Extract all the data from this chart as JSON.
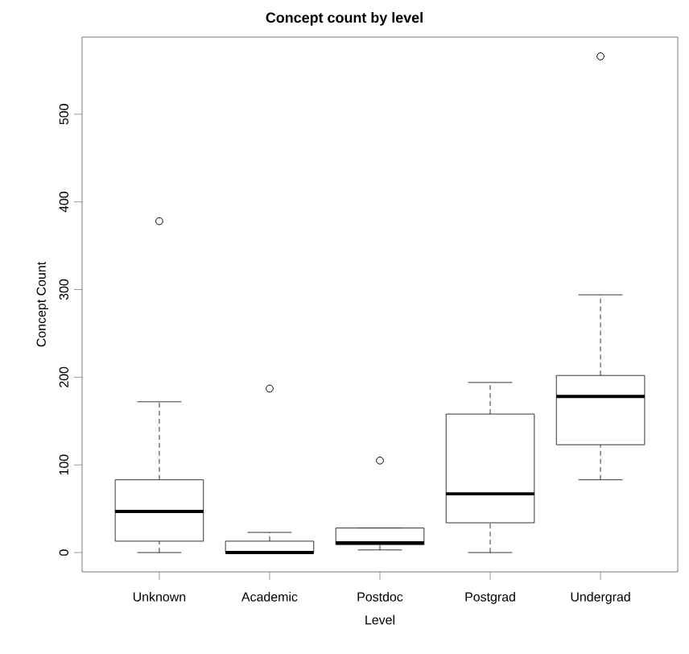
{
  "chart_data": {
    "type": "box",
    "title": "Concept count by level",
    "xlabel": "Level",
    "ylabel": "Concept Count",
    "categories": [
      "Unknown",
      "Academic",
      "Postdoc",
      "Postgrad",
      "Undergrad"
    ],
    "boxes": [
      {
        "low": 0,
        "q1": 13,
        "median": 47,
        "q3": 83,
        "high": 172,
        "outliers": [
          378
        ]
      },
      {
        "low": 0,
        "q1": 0,
        "median": 0,
        "q3": 13,
        "high": 23,
        "outliers": [
          187
        ]
      },
      {
        "low": 3,
        "q1": 9,
        "median": 11,
        "q3": 28,
        "high": 28,
        "outliers": [
          105
        ]
      },
      {
        "low": 0,
        "q1": 34,
        "median": 67,
        "q3": 158,
        "high": 194
      },
      {
        "low": 83,
        "q1": 123,
        "median": 178,
        "q3": 202,
        "high": 294,
        "outliers": [
          566
        ]
      }
    ],
    "ylim": [
      -22,
      588
    ],
    "yticks": [
      0,
      100,
      200,
      300,
      400,
      500
    ],
    "grid": false,
    "marker": "circle"
  }
}
